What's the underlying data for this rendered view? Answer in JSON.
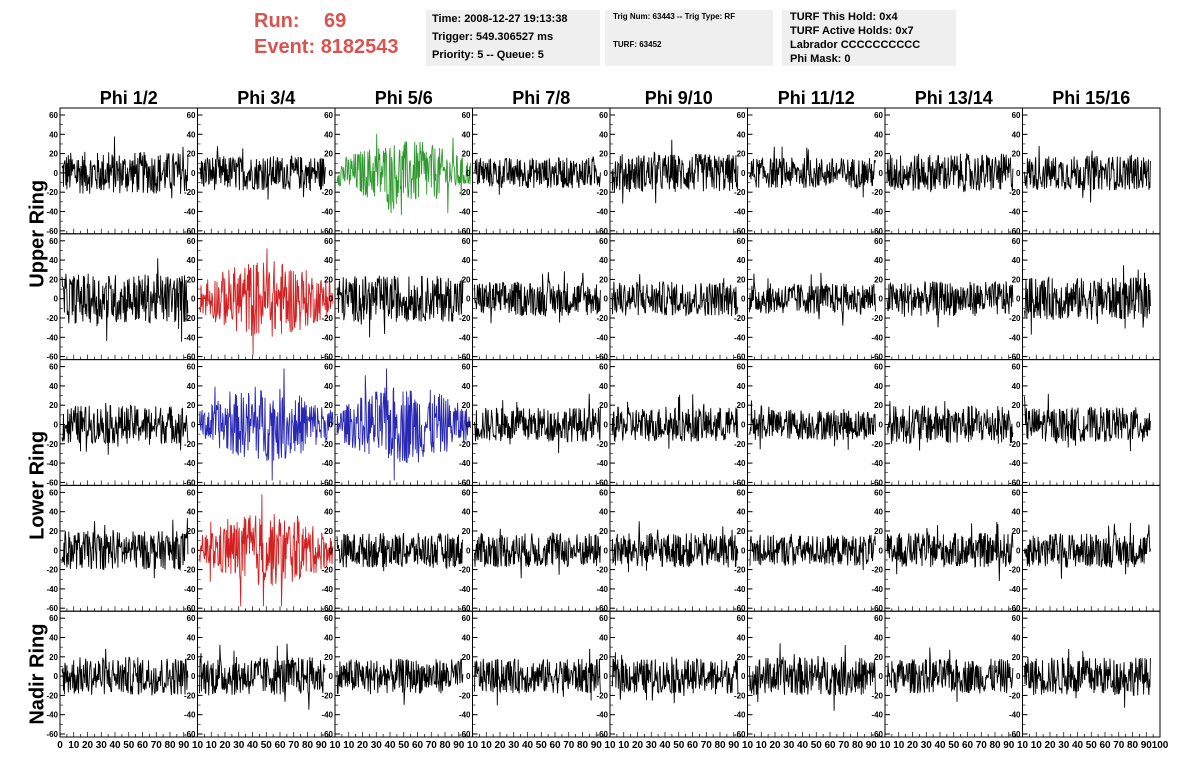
{
  "header": {
    "run_label": "Run:",
    "run_value": "69",
    "event_label": "Event:",
    "event_value": "8182543"
  },
  "time_box": {
    "time": "Time: 2008-12-27 19:13:38",
    "trigger": "Trigger: 549.306527 ms",
    "priority": "Priority: 5 -- Queue: 5"
  },
  "trig_box": {
    "trig": "Trig Num: 63443 -- Trig Type: RF",
    "turf": "TURF: 63452"
  },
  "turf_box": {
    "this_hold": "TURF This Hold: 0x4",
    "active_holds": "TURF Active Holds: 0x7",
    "labrador": "Labrador CCCCCCCCCC",
    "phi_mask": "Phi Mask: 0"
  },
  "columns": [
    "Phi 1/2",
    "Phi 3/4",
    "Phi 5/6",
    "Phi 7/8",
    "Phi 9/10",
    "Phi 11/12",
    "Phi 13/14",
    "Phi 15/16"
  ],
  "row_groups": [
    {
      "label": "Upper Ring",
      "rows": 2
    },
    {
      "label": "Lower Ring",
      "rows": 2
    },
    {
      "label": "Nadir Ring",
      "rows": 1
    }
  ],
  "colors": {
    "default": "#000000",
    "green": "#2e9a2e",
    "red": "#d42020",
    "blue": "#2828b4",
    "header_red": "#d9534f",
    "box_bg": "#efefef"
  },
  "chart_data": {
    "type": "line",
    "description_of_values": "Each panel is a waveform trace; exact samples are not legible, amplitude estimated from gridlines",
    "xlim": [
      0,
      100
    ],
    "ylim": [
      -60,
      60
    ],
    "y_ticks": [
      -60,
      -40,
      -20,
      0,
      20,
      40,
      60
    ],
    "x_ticks": [
      0,
      10,
      20,
      30,
      40,
      50,
      60,
      70,
      80,
      90,
      100
    ],
    "x_tick_labels": "0 10 20 30 40 50 60 70 80 90 100",
    "panels_amplitude": [
      [
        22,
        18,
        28,
        16,
        20,
        16,
        20,
        18
      ],
      [
        26,
        34,
        24,
        18,
        18,
        16,
        18,
        22
      ],
      [
        20,
        32,
        34,
        18,
        18,
        16,
        20,
        18
      ],
      [
        20,
        32,
        18,
        18,
        18,
        16,
        18,
        18
      ],
      [
        20,
        20,
        18,
        18,
        18,
        20,
        18,
        20
      ]
    ],
    "panels_color": [
      [
        "default",
        "default",
        "green",
        "default",
        "default",
        "default",
        "default",
        "default"
      ],
      [
        "default",
        "red",
        "default",
        "default",
        "default",
        "default",
        "default",
        "default"
      ],
      [
        "default",
        "blue",
        "blue",
        "default",
        "default",
        "default",
        "default",
        "default"
      ],
      [
        "default",
        "red",
        "default",
        "default",
        "default",
        "default",
        "default",
        "default"
      ],
      [
        "default",
        "default",
        "default",
        "default",
        "default",
        "default",
        "default",
        "default"
      ]
    ]
  }
}
